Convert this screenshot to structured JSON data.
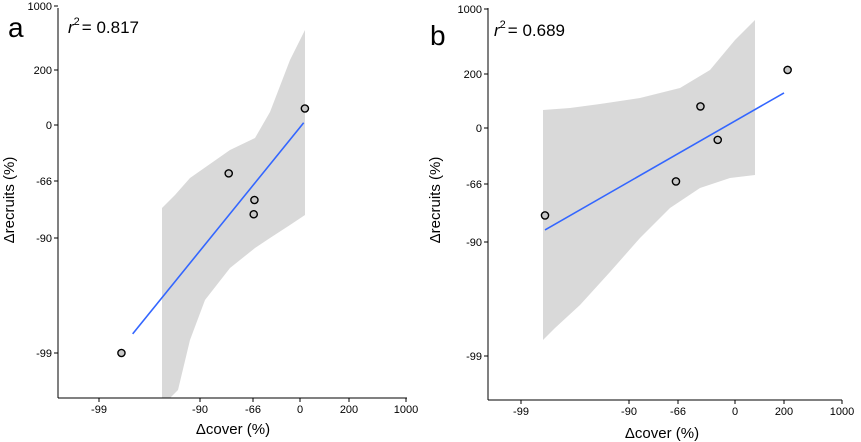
{
  "chart_data": [
    {
      "type": "scatter",
      "panel_label": "a",
      "annotation": {
        "r2_prefix": "r",
        "r2_sup": "2",
        "r2_value": "= 0.817"
      },
      "xlabel": "Δcover (%)",
      "ylabel": "Δrecruits (%)",
      "x_ticks": [
        "-99",
        "-90",
        "-66",
        "0",
        "200",
        "1000"
      ],
      "y_ticks": [
        "1000",
        "200",
        "0",
        "-66",
        "-90",
        "-99"
      ],
      "points": [
        {
          "x": "-97",
          "y": "-99"
        },
        {
          "x": "-77",
          "y": "-57"
        },
        {
          "x": "-64",
          "y": "-74"
        },
        {
          "x": "-65",
          "y": "-80"
        },
        {
          "x": "20",
          "y": "60"
        }
      ],
      "fit_line": {
        "color": "#3366ff",
        "x_start": "-96",
        "y_start": "-97.5",
        "x_end": "15",
        "y_end": "8"
      },
      "ci_color": "#d9d9d9",
      "legend": "none",
      "grid": false
    },
    {
      "type": "scatter",
      "panel_label": "b",
      "annotation": {
        "r2_prefix": "r",
        "r2_sup": "2",
        "r2_value": "= 0.689"
      },
      "xlabel": "Δcover (%)",
      "ylabel": "Δrecruits (%)",
      "x_ticks": [
        "-99",
        "-90",
        "-66",
        "0",
        "200",
        "1000"
      ],
      "y_ticks": [
        "1000",
        "200",
        "0",
        "-66",
        "-90",
        "-99"
      ],
      "points": [
        {
          "x": "-97",
          "y": "-79"
        },
        {
          "x": "-67",
          "y": "-63"
        },
        {
          "x": "-40",
          "y": "80"
        },
        {
          "x": "-20",
          "y": "-14"
        },
        {
          "x": "250",
          "y": "250"
        }
      ],
      "fit_line": {
        "color": "#3366ff",
        "x_start": "-97",
        "y_start": "-85",
        "x_end": "200",
        "y_end": "130"
      },
      "ci_color": "#d9d9d9",
      "legend": "none",
      "grid": false
    }
  ]
}
